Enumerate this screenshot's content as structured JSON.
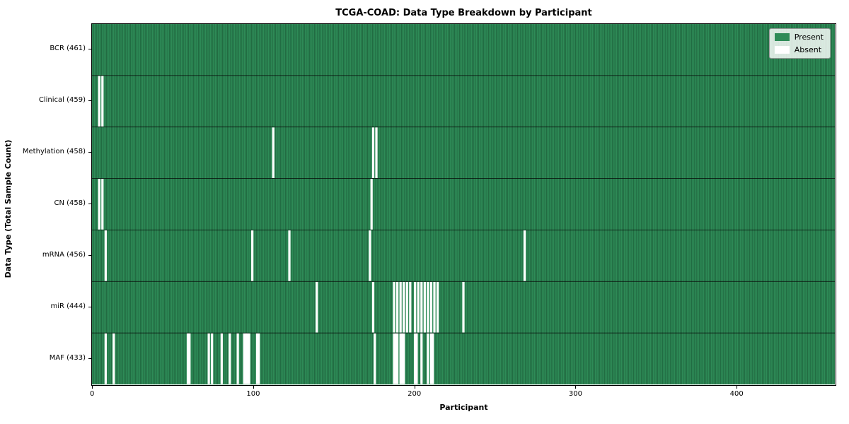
{
  "title": "TCGA-COAD: Data Type Breakdown by Participant",
  "xlabel": "Participant",
  "ylabel": "Data Type (Total Sample Count)",
  "legend": {
    "present_label": "Present",
    "absent_label": "Absent"
  },
  "colors": {
    "present": "#2e8b57",
    "absent": "#ffffff",
    "cell_edge": "rgba(8,38,22,0.55)",
    "row_separator": "rgba(0,0,0,0.8)",
    "axis": "#000000"
  },
  "chart_data": {
    "type": "heatmap",
    "title": "TCGA-COAD: Data Type Breakdown by Participant",
    "xlabel": "Participant",
    "ylabel": "Data Type (Total Sample Count)",
    "legend": [
      "Present",
      "Absent"
    ],
    "legend_position": "upper right",
    "n_participants": 461,
    "x_ticks": [
      0,
      100,
      200,
      300,
      400
    ],
    "value_encoding": {
      "present": "green cell",
      "absent": "white cell"
    },
    "rows": [
      {
        "label": "BCR (461)",
        "data_type": "BCR",
        "present_count": 461,
        "absent_count": 0,
        "absent_participants": []
      },
      {
        "label": "Clinical (459)",
        "data_type": "Clinical",
        "present_count": 459,
        "absent_count": 2,
        "absent_participants": [
          4,
          6
        ]
      },
      {
        "label": "Methylation (458)",
        "data_type": "Methylation",
        "present_count": 458,
        "absent_count": 3,
        "absent_participants": [
          112,
          174,
          176
        ]
      },
      {
        "label": "CN (458)",
        "data_type": "CN",
        "present_count": 458,
        "absent_count": 3,
        "absent_participants": [
          4,
          6,
          173
        ]
      },
      {
        "label": "mRNA (456)",
        "data_type": "mRNA",
        "present_count": 456,
        "absent_count": 5,
        "absent_participants": [
          8,
          99,
          122,
          172,
          268
        ]
      },
      {
        "label": "miR (444)",
        "data_type": "miR",
        "present_count": 444,
        "absent_count": 17,
        "absent_participants": [
          139,
          174,
          187,
          189,
          191,
          193,
          195,
          197,
          200,
          202,
          204,
          206,
          208,
          210,
          212,
          214,
          230
        ]
      },
      {
        "label": "MAF (433)",
        "data_type": "MAF",
        "present_count": 433,
        "absent_count": 28,
        "absent_participants": [
          8,
          13,
          59,
          60,
          72,
          74,
          80,
          85,
          90,
          94,
          95,
          96,
          97,
          102,
          103,
          175,
          187,
          188,
          189,
          191,
          192,
          193,
          200,
          201,
          204,
          208,
          210,
          211
        ]
      }
    ]
  }
}
